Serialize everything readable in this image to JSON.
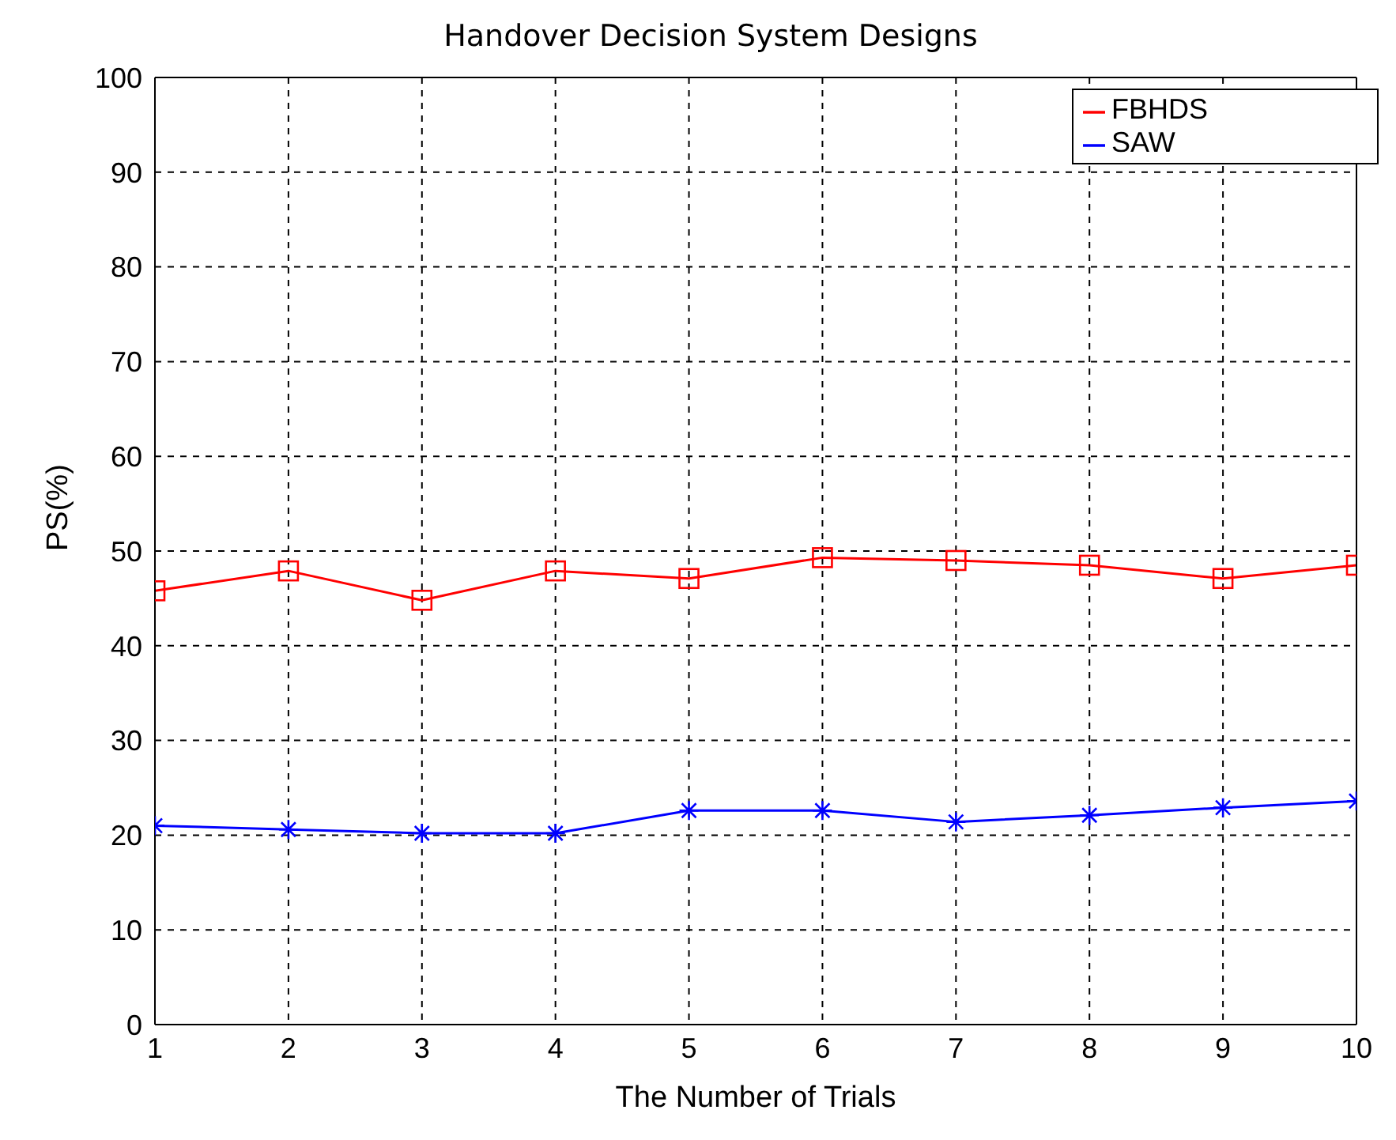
{
  "chart_data": {
    "type": "line",
    "title": "Handover Decision System Designs",
    "xlabel": "The Number of Trials",
    "ylabel": "PS(%)",
    "x": [
      1,
      2,
      3,
      4,
      5,
      6,
      7,
      8,
      9,
      10
    ],
    "series": [
      {
        "name": "FBHDS",
        "color": "#ff0000",
        "marker": "square",
        "values": [
          45.8,
          47.9,
          44.8,
          47.9,
          47.1,
          49.3,
          49.0,
          48.5,
          47.1,
          48.5
        ]
      },
      {
        "name": "SAW",
        "color": "#0000ff",
        "marker": "cross",
        "values": [
          21.0,
          20.6,
          20.2,
          20.2,
          22.6,
          22.6,
          21.4,
          22.1,
          22.9,
          23.6
        ]
      }
    ],
    "xlim": [
      1,
      10
    ],
    "xticks": [
      1,
      2,
      3,
      4,
      5,
      6,
      7,
      8,
      9,
      10
    ],
    "ylim": [
      0,
      100
    ],
    "yticks": [
      0,
      10,
      20,
      30,
      40,
      50,
      60,
      70,
      80,
      90,
      100
    ],
    "grid": true,
    "legend": "top right",
    "line_style": "solid"
  }
}
